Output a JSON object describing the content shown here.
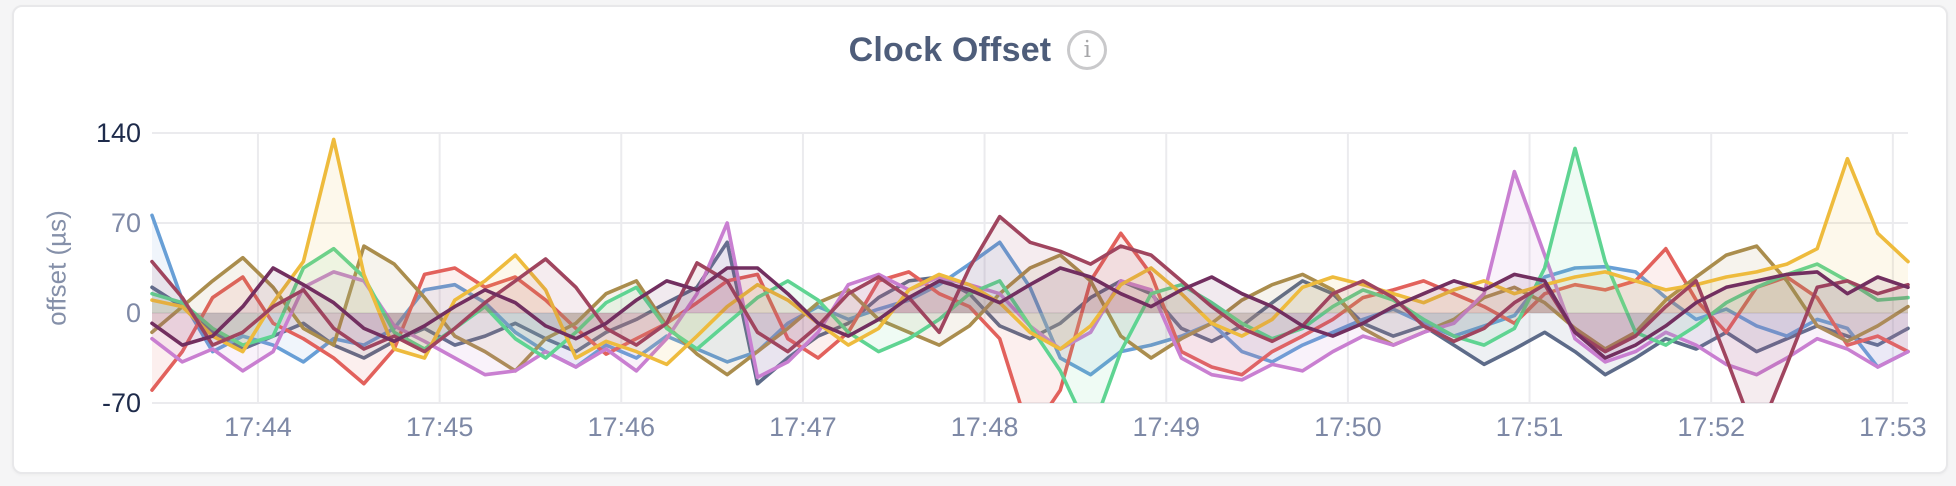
{
  "header": {
    "title": "Clock Offset",
    "info_icon_glyph": "i"
  },
  "colors": {
    "page_background": "#f5f5f6",
    "card_background": "#ffffff",
    "card_border": "#e8e8ea",
    "title_text": "#4e5d7a",
    "gridline": "#ebebee",
    "axis_tick_extreme": "#1e2b4b",
    "axis_tick_inner": "#7e89a6"
  },
  "chart_data": {
    "type": "line",
    "title": "Clock Offset",
    "xlabel": "",
    "ylabel": "offset (µs)",
    "ylim": [
      -70,
      140
    ],
    "y_tick_labels": [
      "140",
      "70",
      "0",
      "-70"
    ],
    "y_tick_values": [
      140,
      70,
      0,
      -70
    ],
    "x_tick_labels": [
      "17:44",
      "17:45",
      "17:46",
      "17:47",
      "17:48",
      "17:49",
      "17:50",
      "17:51",
      "17:52",
      "17:53"
    ],
    "grid": true,
    "legend_position": "none",
    "points_interval_seconds": 10,
    "fill_to_zero_opacity": 0.1,
    "series": [
      {
        "name": "series-1-slate",
        "color": "#5d6b89",
        "values": [
          20,
          5,
          -15,
          -28,
          -18,
          -8,
          -25,
          -35,
          -22,
          -12,
          -25,
          -18,
          -8,
          -20,
          -30,
          -15,
          -5,
          8,
          20,
          55,
          -55,
          -35,
          -18,
          -8,
          12,
          25,
          28,
          15,
          -10,
          -20,
          -8,
          12,
          25,
          15,
          -12,
          -22,
          -10,
          8,
          25,
          15,
          -8,
          -18,
          -10,
          -25,
          -40,
          -28,
          -15,
          -30,
          -48,
          -35,
          -20,
          -28,
          -15,
          -30,
          -20,
          -10,
          -18,
          -25,
          -12
        ]
      },
      {
        "name": "series-2-blue",
        "color": "#689fd6",
        "values": [
          76,
          10,
          -30,
          -18,
          -25,
          -38,
          -20,
          -25,
          -12,
          18,
          22,
          8,
          -15,
          -30,
          -42,
          -25,
          -35,
          -18,
          -28,
          -38,
          -30,
          -8,
          5,
          -5,
          3,
          10,
          22,
          38,
          55,
          20,
          -35,
          -48,
          -30,
          -25,
          -18,
          -8,
          -30,
          -38,
          -25,
          -15,
          -5,
          3,
          -8,
          -18,
          -10,
          -2,
          28,
          35,
          36,
          32,
          12,
          -5,
          3,
          -10,
          -18,
          -5,
          -12,
          -42,
          -30
        ]
      },
      {
        "name": "series-3-red",
        "color": "#e2615c",
        "values": [
          -60,
          -30,
          12,
          28,
          -8,
          -20,
          -35,
          -55,
          -28,
          30,
          35,
          20,
          28,
          10,
          -12,
          -32,
          -20,
          -8,
          8,
          25,
          30,
          -20,
          -35,
          -15,
          25,
          32,
          15,
          5,
          -20,
          -95,
          -60,
          25,
          62,
          30,
          -30,
          -42,
          -48,
          -30,
          -18,
          -5,
          12,
          18,
          25,
          15,
          5,
          -8,
          15,
          22,
          18,
          25,
          50,
          10,
          -15,
          20,
          28,
          12,
          -25,
          -18,
          -30
        ]
      },
      {
        "name": "series-4-olive",
        "color": "#aa8d4d",
        "values": [
          -15,
          5,
          25,
          43,
          20,
          -12,
          -25,
          52,
          38,
          12,
          -18,
          -30,
          -45,
          -20,
          -8,
          15,
          25,
          -10,
          -32,
          -48,
          -30,
          -12,
          8,
          18,
          -5,
          -15,
          -25,
          -10,
          15,
          35,
          45,
          25,
          -18,
          -35,
          -20,
          -8,
          10,
          22,
          30,
          18,
          -12,
          -25,
          -15,
          -5,
          12,
          20,
          8,
          -12,
          -28,
          -15,
          10,
          28,
          45,
          52,
          25,
          -10,
          -22,
          -10,
          5
        ]
      },
      {
        "name": "series-5-orchid",
        "color": "#c97fd1",
        "values": [
          -20,
          -38,
          -28,
          -45,
          -30,
          20,
          32,
          25,
          -10,
          -22,
          -35,
          -48,
          -45,
          -30,
          -42,
          -28,
          -45,
          -20,
          15,
          70,
          -50,
          -38,
          -15,
          22,
          30,
          18,
          28,
          22,
          15,
          -10,
          -28,
          -15,
          25,
          18,
          -35,
          -48,
          -52,
          -40,
          -45,
          -30,
          -18,
          -25,
          -15,
          -8,
          15,
          110,
          45,
          -20,
          -38,
          -30,
          -15,
          -25,
          -40,
          -48,
          -35,
          -20,
          -28,
          -42,
          -30
        ]
      },
      {
        "name": "series-6-green",
        "color": "#5fd492",
        "values": [
          15,
          8,
          -12,
          -25,
          -18,
          35,
          50,
          28,
          -15,
          -28,
          -12,
          5,
          -20,
          -35,
          -15,
          8,
          20,
          -12,
          -28,
          -8,
          12,
          25,
          10,
          -15,
          -30,
          -20,
          -5,
          15,
          25,
          -10,
          -45,
          -95,
          -30,
          15,
          22,
          8,
          -8,
          -20,
          -12,
          5,
          18,
          10,
          -5,
          -18,
          -25,
          -12,
          35,
          128,
          40,
          -15,
          -25,
          -10,
          8,
          20,
          30,
          38,
          25,
          10,
          12
        ]
      },
      {
        "name": "series-7-gold",
        "color": "#eebb3d",
        "values": [
          10,
          5,
          -18,
          -30,
          8,
          40,
          135,
          30,
          -28,
          -35,
          10,
          25,
          45,
          18,
          -35,
          -22,
          -30,
          -40,
          -18,
          5,
          22,
          10,
          -8,
          -25,
          -12,
          18,
          30,
          22,
          8,
          -15,
          -28,
          -10,
          22,
          35,
          15,
          -8,
          -18,
          -5,
          20,
          28,
          22,
          15,
          8,
          18,
          25,
          15,
          22,
          28,
          32,
          25,
          18,
          22,
          28,
          32,
          38,
          50,
          120,
          62,
          40
        ]
      },
      {
        "name": "series-8-maroon",
        "color": "#a0455f",
        "values": [
          40,
          12,
          -25,
          -15,
          5,
          18,
          -12,
          -28,
          -18,
          -30,
          -12,
          8,
          25,
          42,
          20,
          -12,
          -25,
          -8,
          39,
          25,
          -15,
          -30,
          -10,
          15,
          28,
          12,
          -15,
          35,
          75,
          55,
          48,
          38,
          52,
          45,
          25,
          5,
          -12,
          -22,
          -10,
          15,
          25,
          12,
          -10,
          -22,
          -12,
          8,
          22,
          -15,
          -30,
          -18,
          5,
          25,
          -35,
          -98,
          -40,
          20,
          25,
          15,
          22
        ]
      },
      {
        "name": "series-9-purple",
        "color": "#722f60",
        "values": [
          -8,
          -25,
          -18,
          5,
          35,
          22,
          8,
          -12,
          -22,
          -10,
          5,
          18,
          8,
          -10,
          -20,
          -8,
          10,
          25,
          18,
          35,
          35,
          15,
          -8,
          -18,
          -5,
          12,
          25,
          18,
          8,
          22,
          35,
          28,
          15,
          5,
          18,
          28,
          15,
          5,
          -10,
          -18,
          -8,
          5,
          15,
          25,
          18,
          30,
          25,
          -15,
          -35,
          -25,
          -10,
          8,
          20,
          25,
          30,
          32,
          15,
          28,
          20
        ]
      }
    ]
  }
}
